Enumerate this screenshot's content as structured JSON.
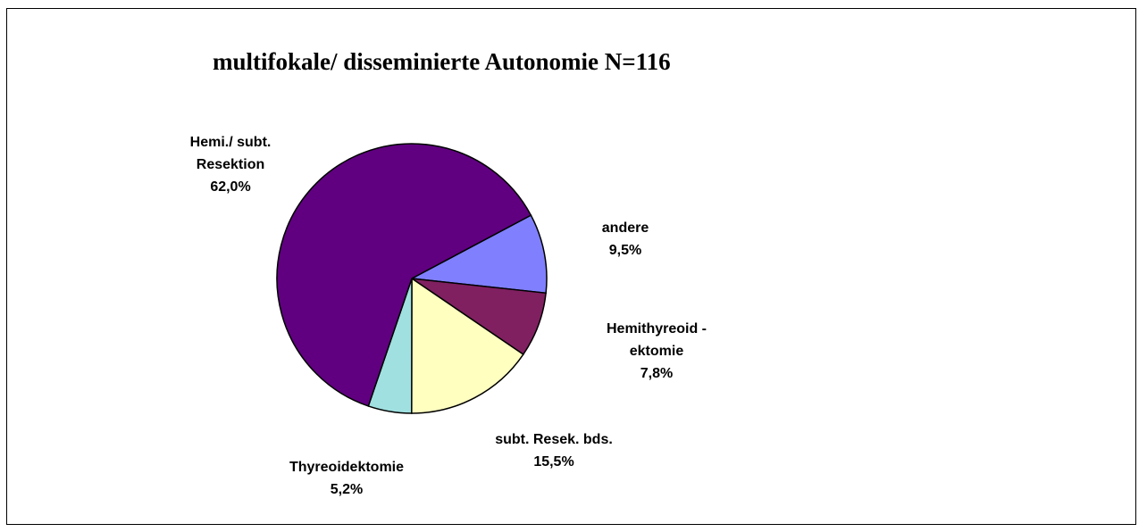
{
  "chart_data": {
    "type": "pie",
    "title": "multifokale/ disseminierte Autonomie N=116",
    "start_angle_deg": 28,
    "direction": "clockwise",
    "slices": [
      {
        "name": [
          "andere"
        ],
        "value": 9.5,
        "label": "9,5%",
        "color": "#8080ff"
      },
      {
        "name": [
          "Hemithyreoid -",
          "ektomie"
        ],
        "value": 7.8,
        "label": "7,8%",
        "color": "#802060"
      },
      {
        "name": [
          "subt. Resek. bds."
        ],
        "value": 15.5,
        "label": "15,5%",
        "color": "#ffffc0"
      },
      {
        "name": [
          "Thyreoidektomie"
        ],
        "value": 5.2,
        "label": "5,2%",
        "color": "#a0e0e0"
      },
      {
        "name": [
          "Hemi./ subt.",
          "Resektion"
        ],
        "value": 62.0,
        "label": "62,0%",
        "color": "#600080"
      }
    ]
  }
}
